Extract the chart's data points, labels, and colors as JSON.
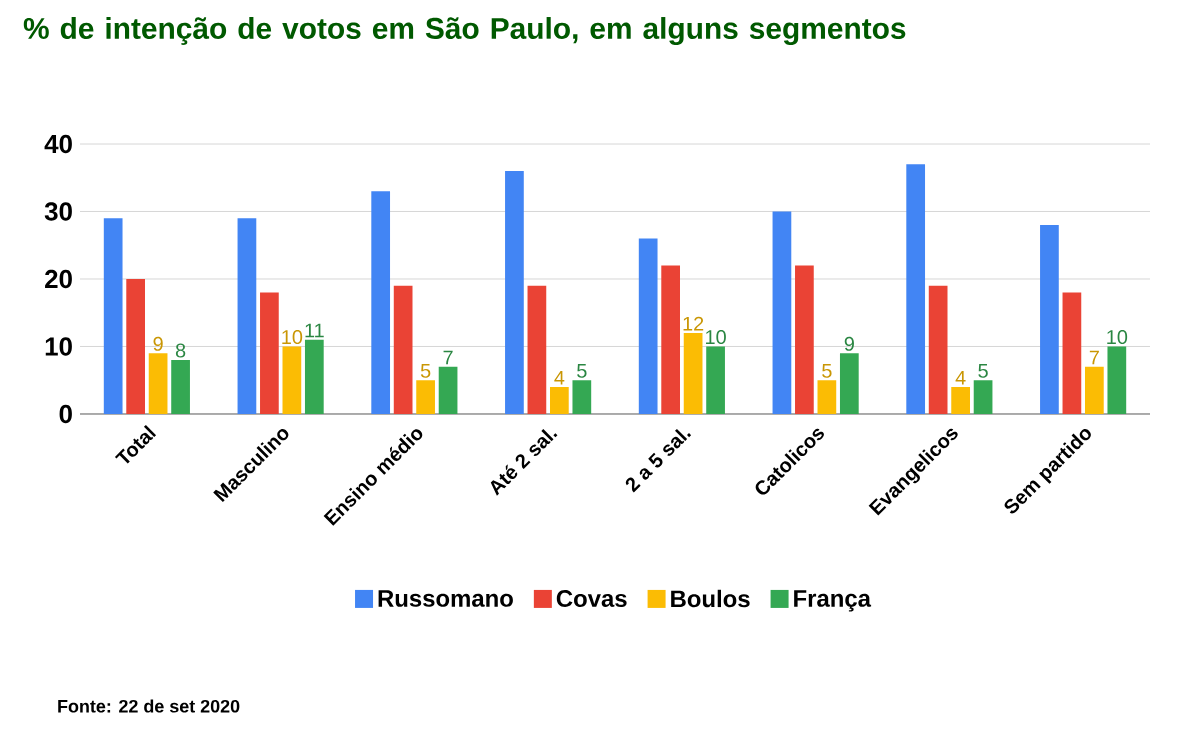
{
  "chart_data": {
    "type": "bar",
    "title": "% de intenção de votos em São Paulo, em alguns segmentos",
    "categories": [
      "Total",
      "Masculino",
      "Ensino médio",
      "Até 2 sal.",
      "2 a 5 sal.",
      "Catolicos",
      "Evangelicos",
      "Sem partido"
    ],
    "series": [
      {
        "name": "Russomano",
        "color": "#4285f4",
        "values": [
          29,
          29,
          33,
          36,
          26,
          30,
          37,
          28
        ]
      },
      {
        "name": "Covas",
        "color": "#ea4335",
        "values": [
          20,
          18,
          19,
          19,
          22,
          22,
          19,
          18
        ]
      },
      {
        "name": "Boulos",
        "color": "#fbbc04",
        "values": [
          9,
          10,
          5,
          4,
          12,
          5,
          4,
          7
        ],
        "value_labels": [
          "9",
          "10",
          "5",
          "4",
          "12",
          "5",
          "4",
          "7"
        ]
      },
      {
        "name": "França",
        "color": "#34a853",
        "values": [
          8,
          11,
          7,
          5,
          10,
          9,
          5,
          10
        ],
        "value_labels": [
          "8",
          "11",
          "7",
          "5",
          "10",
          "9",
          "5",
          "10"
        ]
      }
    ],
    "ylim": [
      0,
      40
    ],
    "yticks": [
      0,
      10,
      20,
      30,
      40
    ],
    "grid": "y",
    "legend": "bottom",
    "annotations": [
      "Fonte: 22 de set 2020"
    ]
  }
}
